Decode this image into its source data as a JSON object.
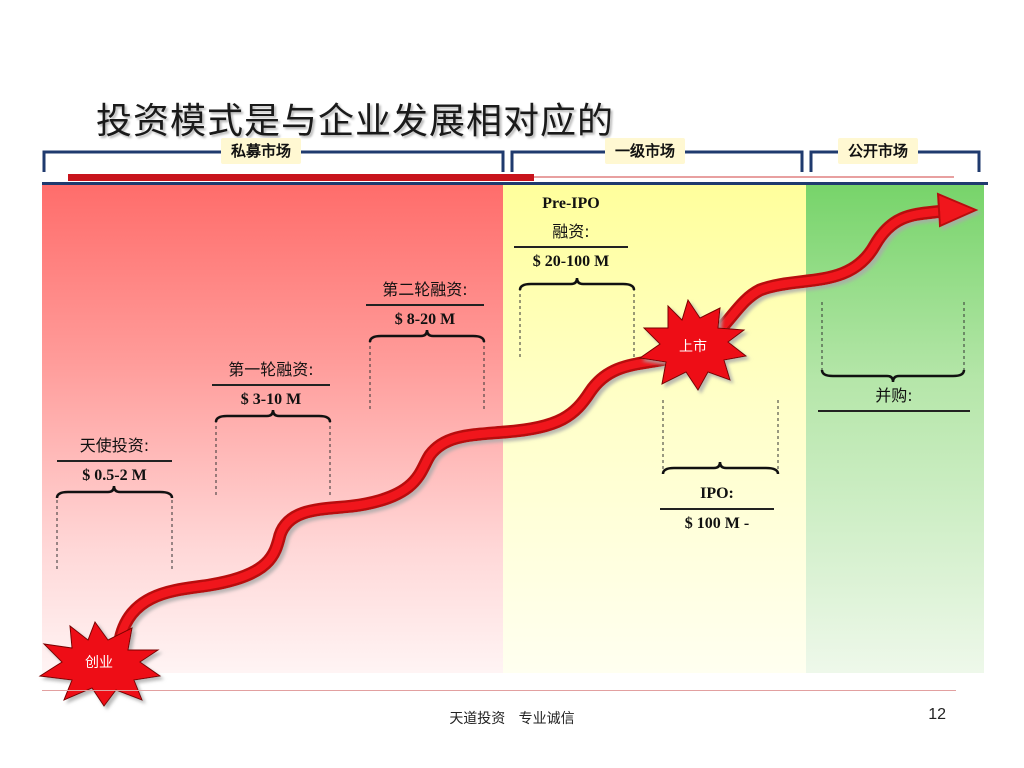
{
  "title": "投资模式是与企业发展相对应的",
  "markets": {
    "private": "私募市场",
    "primary": "一级市场",
    "public": "公开市场"
  },
  "stages": {
    "angel": {
      "name": "天使投资:",
      "amount": "$ 0.5-2 M"
    },
    "round1": {
      "name": "第一轮融资:",
      "amount": "$ 3-10 M"
    },
    "round2": {
      "name": "第二轮融资:",
      "amount": "$ 8-20 M"
    },
    "preipo": {
      "name_line1": "Pre-IPO",
      "name_line2": "融资:",
      "amount": "$ 20-100 M"
    },
    "ipo": {
      "name": "IPO:",
      "amount": "$ 100 M -"
    },
    "ma": {
      "name": "并购:"
    }
  },
  "bursts": {
    "start": "创业",
    "listing": "上市"
  },
  "colors": {
    "private_zone": "#ff6d6b",
    "primary_zone": "#ffff9c",
    "public_zone": "#77d46a",
    "arrow": "#e8141c",
    "bracket": "#1f3a6e"
  },
  "footer": {
    "text": "天道投资   专业诚信",
    "page": "12"
  }
}
